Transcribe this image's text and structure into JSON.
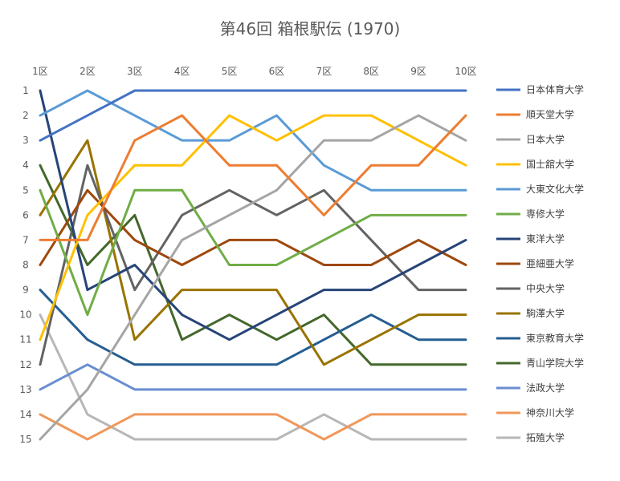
{
  "chart_data": {
    "type": "line",
    "title": "第46回 箱根駅伝 (1970)",
    "xlabel": "",
    "ylabel": "",
    "categories": [
      "1区",
      "2区",
      "3区",
      "4区",
      "5区",
      "6区",
      "7区",
      "8区",
      "9区",
      "10区"
    ],
    "y_ticks": [
      "1",
      "2",
      "3",
      "4",
      "5",
      "6",
      "7",
      "8",
      "9",
      "10",
      "11",
      "12",
      "13",
      "14",
      "15"
    ],
    "ylim": [
      1,
      15
    ],
    "y_inverted": true,
    "x_axis_position": "top",
    "grid": false,
    "legend_position": "right",
    "series": [
      {
        "name": "日本体育大学",
        "color": "#4472C4",
        "values": [
          3,
          2,
          1,
          1,
          1,
          1,
          1,
          1,
          1,
          1
        ]
      },
      {
        "name": "順天堂大学",
        "color": "#ED7D31",
        "values": [
          7,
          7,
          3,
          2,
          4,
          4,
          6,
          4,
          4,
          2
        ]
      },
      {
        "name": "日本大学",
        "color": "#A5A5A5",
        "values": [
          15,
          13,
          10,
          7,
          6,
          5,
          3,
          3,
          2,
          3
        ]
      },
      {
        "name": "国士舘大学",
        "color": "#FFC000",
        "values": [
          11,
          6,
          4,
          4,
          2,
          3,
          2,
          2,
          3,
          4
        ]
      },
      {
        "name": "大東文化大学",
        "color": "#5B9BD5",
        "values": [
          2,
          1,
          2,
          3,
          3,
          2,
          4,
          5,
          5,
          5
        ]
      },
      {
        "name": "専修大学",
        "color": "#70AD47",
        "values": [
          5,
          10,
          5,
          5,
          8,
          8,
          7,
          6,
          6,
          6
        ]
      },
      {
        "name": "東洋大学",
        "color": "#264478",
        "values": [
          1,
          9,
          8,
          10,
          11,
          10,
          9,
          9,
          8,
          7
        ]
      },
      {
        "name": "亜細亜大学",
        "color": "#9E480E",
        "values": [
          8,
          5,
          7,
          8,
          7,
          7,
          8,
          8,
          7,
          8
        ]
      },
      {
        "name": "中央大学",
        "color": "#636363",
        "values": [
          12,
          4,
          9,
          6,
          5,
          6,
          5,
          7,
          9,
          9
        ]
      },
      {
        "name": "駒澤大学",
        "color": "#997300",
        "values": [
          6,
          3,
          11,
          9,
          9,
          9,
          12,
          11,
          10,
          10
        ]
      },
      {
        "name": "東京教育大学",
        "color": "#255E91",
        "values": [
          9,
          11,
          12,
          12,
          12,
          12,
          11,
          10,
          11,
          11
        ]
      },
      {
        "name": "青山学院大学",
        "color": "#43682B",
        "values": [
          4,
          8,
          6,
          11,
          10,
          11,
          10,
          12,
          12,
          12
        ]
      },
      {
        "name": "法政大学",
        "color": "#698ED0",
        "values": [
          13,
          12,
          13,
          13,
          13,
          13,
          13,
          13,
          13,
          13
        ]
      },
      {
        "name": "神奈川大学",
        "color": "#F1975A",
        "values": [
          14,
          15,
          14,
          14,
          14,
          14,
          15,
          14,
          14,
          14
        ]
      },
      {
        "name": "拓殖大学",
        "color": "#B7B7B7",
        "values": [
          10,
          14,
          15,
          15,
          15,
          15,
          14,
          15,
          15,
          15
        ]
      }
    ]
  }
}
